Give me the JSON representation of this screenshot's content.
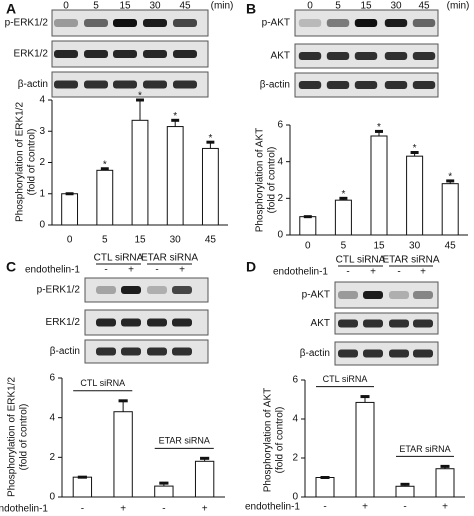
{
  "blots": [
    {
      "letter": "A",
      "lanes": [
        "0",
        "5",
        "15",
        "30",
        "45"
      ],
      "unit": "(min)",
      "rows": [
        "p-ERK1/2",
        "ERK1/2",
        "β-actin"
      ]
    },
    {
      "letter": "B",
      "lanes": [
        "0",
        "5",
        "15",
        "30",
        "45"
      ],
      "unit": "(min)",
      "rows": [
        "p-AKT",
        "AKT",
        "β-actin"
      ]
    },
    {
      "letter": "C",
      "groups": [
        "CTL siRNA",
        "ETAR siRNA"
      ],
      "treatment": "endothelin-1",
      "lanes": [
        "-",
        "+",
        "-",
        "+"
      ],
      "rows": [
        "p-ERK1/2",
        "ERK1/2",
        "β-actin"
      ]
    },
    {
      "letter": "D",
      "groups": [
        "CTL siRNA",
        "ETAR siRNA"
      ],
      "treatment": "endothelin-1",
      "lanes": [
        "-",
        "+",
        "-",
        "+"
      ],
      "rows": [
        "p-AKT",
        "AKT",
        "β-actin"
      ]
    }
  ],
  "chart_data": [
    {
      "type": "bar",
      "ylabel": [
        "Phosphorylation of ERK1/2",
        "(fold of control)"
      ],
      "categories": [
        "0",
        "5",
        "15",
        "30",
        "45"
      ],
      "values": [
        1,
        1.75,
        3.35,
        3.15,
        2.45
      ],
      "errors": [
        0,
        0.05,
        0.65,
        0.2,
        0.2
      ],
      "ylim": [
        0,
        4
      ],
      "yticks": [
        0,
        1,
        2,
        3,
        4
      ],
      "annotations": [
        {
          "text": "*",
          "index": 1
        },
        {
          "text": "*",
          "index": 2
        },
        {
          "text": "*",
          "index": 3
        },
        {
          "text": "*",
          "index": 4
        }
      ]
    },
    {
      "type": "bar",
      "ylabel": [
        "Phosphorylation of AKT",
        "(fold of control)"
      ],
      "categories": [
        "0",
        "5",
        "15",
        "30",
        "45"
      ],
      "values": [
        1,
        1.9,
        5.4,
        4.3,
        2.8
      ],
      "errors": [
        0,
        0.1,
        0.25,
        0.2,
        0.15
      ],
      "ylim": [
        0,
        6
      ],
      "yticks": [
        0,
        2,
        4,
        6
      ],
      "annotations": [
        {
          "text": "*",
          "index": 1
        },
        {
          "text": "*",
          "index": 2
        },
        {
          "text": "*",
          "index": 3
        },
        {
          "text": "*",
          "index": 4
        }
      ]
    },
    {
      "type": "bar",
      "ylabel": [
        "Phosphorylation of ERK1/2",
        "(fold of control)"
      ],
      "xlabel": "endothelin-1",
      "categories": [
        "-",
        "+",
        "-",
        "+"
      ],
      "values": [
        1,
        4.3,
        0.55,
        1.8
      ],
      "errors": [
        0,
        0.55,
        0.15,
        0.15
      ],
      "ylim": [
        0,
        6
      ],
      "yticks": [
        0,
        2,
        4,
        6
      ],
      "groups": [
        {
          "label": "CTL siRNA",
          "categories": [
            0,
            1
          ]
        },
        {
          "label": "ETAR siRNA",
          "categories": [
            2,
            3
          ]
        }
      ]
    },
    {
      "type": "bar",
      "ylabel": [
        "Phosphorylation of AKT",
        "(fold of control)"
      ],
      "xlabel": "endothelin-1",
      "categories": [
        "-",
        "+",
        "-",
        "+"
      ],
      "values": [
        1,
        4.85,
        0.55,
        1.45
      ],
      "errors": [
        0,
        0.3,
        0.1,
        0.12
      ],
      "ylim": [
        0,
        6
      ],
      "yticks": [
        0,
        2,
        4,
        6
      ],
      "groups": [
        {
          "label": "CTL siRNA",
          "categories": [
            0,
            1
          ]
        },
        {
          "label": "ETAR siRNA",
          "categories": [
            2,
            3
          ]
        }
      ]
    }
  ]
}
